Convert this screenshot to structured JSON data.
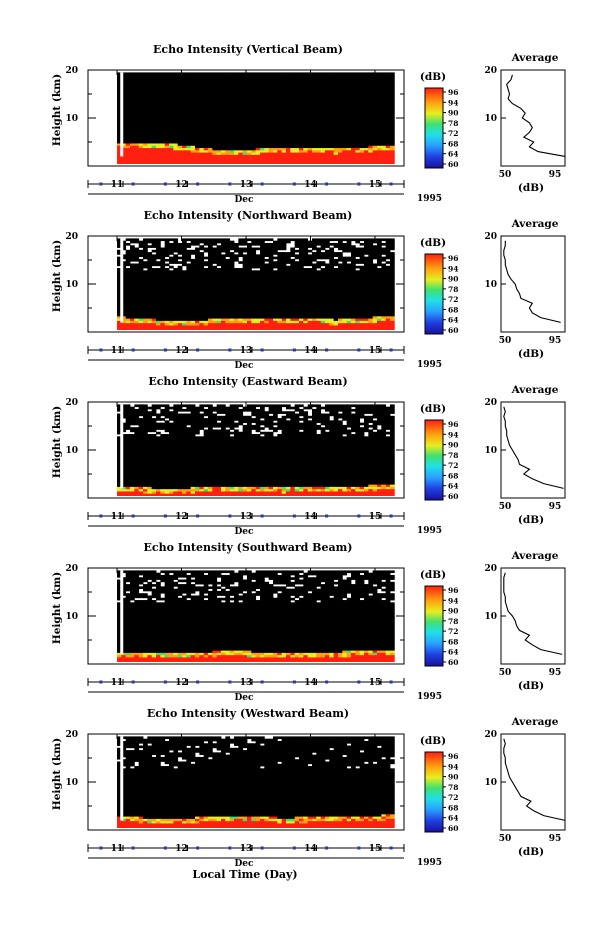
{
  "figure": {
    "xlabel": "Local Time (Day)",
    "month_label": "Dec",
    "year_label": "1995",
    "colorbar_unit": "(dB)",
    "colorbar_ticks": [
      "96",
      "94",
      "90",
      "78",
      "72",
      "68",
      "64",
      "60"
    ],
    "average_title": "Average",
    "average_xlabel": "(dB)",
    "average_xticks": [
      "50",
      "95"
    ],
    "ylabel": "Height (km)",
    "yticks": [
      "20",
      "10"
    ],
    "xticks": [
      "11",
      "12",
      "13",
      "14",
      "15"
    ]
  },
  "chart_data": [
    {
      "type": "heatmap",
      "title": "Echo Intensity (Vertical Beam)",
      "ylabel": "Height (km)",
      "ylim": [
        0,
        20
      ],
      "xlim": [
        10.55,
        15.45
      ],
      "data_start_day": 11.0,
      "data_end_day": 15.3,
      "colorbar": {
        "unit": "dB",
        "range": [
          60,
          96
        ]
      },
      "boundary_layer_top_km": [
        5.0,
        4.6,
        3.2,
        4.0,
        3.6,
        4.4
      ],
      "average_profile": {
        "title": "Average",
        "xlabel": "(dB)",
        "xlim": [
          50,
          95
        ],
        "height_km": [
          2,
          3,
          4,
          5,
          6,
          7,
          8,
          9,
          10,
          11,
          12,
          13,
          14,
          15,
          16,
          17,
          18,
          19
        ],
        "db": [
          95,
          76,
          70,
          73,
          66,
          70,
          72,
          70,
          65,
          67,
          64,
          58,
          55,
          56,
          55,
          54,
          57,
          58
        ]
      }
    },
    {
      "type": "heatmap",
      "title": "Echo Intensity (Northward Beam)",
      "ylabel": "Height (km)",
      "ylim": [
        0,
        20
      ],
      "xlim": [
        10.55,
        15.45
      ],
      "data_start_day": 11.0,
      "data_end_day": 15.3,
      "colorbar": {
        "unit": "dB",
        "range": [
          60,
          96
        ]
      },
      "boundary_layer_top_km": [
        3.2,
        2.4,
        2.8,
        3.0,
        2.6,
        3.4
      ],
      "average_profile": {
        "title": "Average",
        "xlabel": "(dB)",
        "xlim": [
          50,
          95
        ],
        "height_km": [
          2,
          3,
          4,
          5,
          6,
          7,
          8,
          9,
          10,
          11,
          12,
          13,
          14,
          15,
          16,
          17,
          18,
          19
        ],
        "db": [
          92,
          78,
          72,
          70,
          72,
          64,
          63,
          61,
          60,
          57,
          55,
          54,
          53,
          53,
          52,
          52,
          53,
          53
        ]
      }
    },
    {
      "type": "heatmap",
      "title": "Echo Intensity (Eastward Beam)",
      "ylabel": "Height (km)",
      "ylim": [
        0,
        20
      ],
      "xlim": [
        10.55,
        15.45
      ],
      "data_start_day": 11.0,
      "data_end_day": 15.3,
      "colorbar": {
        "unit": "dB",
        "range": [
          60,
          96
        ]
      },
      "boundary_layer_top_km": [
        2.4,
        2.0,
        2.6,
        2.2,
        2.4,
        2.8
      ],
      "average_profile": {
        "title": "Average",
        "xlabel": "(dB)",
        "xlim": [
          50,
          95
        ],
        "height_km": [
          2,
          3,
          4,
          5,
          6,
          7,
          8,
          9,
          10,
          11,
          12,
          13,
          14,
          15,
          16,
          17,
          18,
          19
        ],
        "db": [
          94,
          80,
          72,
          66,
          70,
          63,
          62,
          60,
          58,
          56,
          55,
          54,
          54,
          53,
          53,
          52,
          53,
          52
        ]
      }
    },
    {
      "type": "heatmap",
      "title": "Echo Intensity (Southward Beam)",
      "ylabel": "Height (km)",
      "ylim": [
        0,
        20
      ],
      "xlim": [
        10.55,
        15.45
      ],
      "data_start_day": 11.0,
      "data_end_day": 15.3,
      "colorbar": {
        "unit": "dB",
        "range": [
          60,
          96
        ]
      },
      "boundary_layer_top_km": [
        2.6,
        2.2,
        2.8,
        2.4,
        2.6,
        3.0
      ],
      "average_profile": {
        "title": "Average",
        "xlabel": "(dB)",
        "xlim": [
          50,
          95
        ],
        "height_km": [
          2,
          3,
          4,
          5,
          6,
          7,
          8,
          9,
          10,
          11,
          12,
          13,
          14,
          15,
          16,
          17,
          18,
          19
        ],
        "db": [
          93,
          78,
          72,
          67,
          70,
          63,
          61,
          60,
          58,
          55,
          54,
          53,
          53,
          52,
          52,
          52,
          52,
          53
        ]
      }
    },
    {
      "type": "heatmap",
      "title": "Echo Intensity (Westward Beam)",
      "ylabel": "Height (km)",
      "ylim": [
        0,
        20
      ],
      "xlim": [
        10.55,
        15.45
      ],
      "data_start_day": 11.0,
      "data_end_day": 15.3,
      "colorbar": {
        "unit": "dB",
        "range": [
          60,
          96
        ]
      },
      "boundary_layer_top_km": [
        2.8,
        2.4,
        3.0,
        2.6,
        2.8,
        3.2
      ],
      "average_profile": {
        "title": "Average",
        "xlabel": "(dB)",
        "xlim": [
          50,
          95
        ],
        "height_km": [
          2,
          3,
          4,
          5,
          6,
          7,
          8,
          9,
          10,
          11,
          12,
          13,
          14,
          15,
          16,
          17,
          18,
          19
        ],
        "db": [
          95,
          80,
          73,
          68,
          71,
          64,
          62,
          60,
          58,
          56,
          55,
          54,
          53,
          53,
          52,
          52,
          53,
          52
        ]
      }
    }
  ]
}
